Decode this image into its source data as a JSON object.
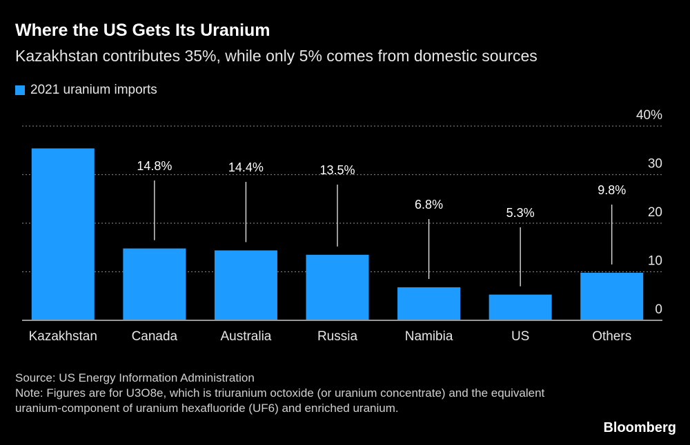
{
  "title": "Where the US Gets Its Uranium",
  "subtitle": "Kazakhstan contributes 35%, while only 5% comes from domestic sources",
  "source": "Source: US Energy Information Administration",
  "note": "Note: Figures are for U3O8e, which is triuranium octoxide (or uranium concentrate) and the equivalent uranium-component of uranium hexafluoride (UF6) and enriched uranium.",
  "brand": "Bloomberg",
  "colors": {
    "bar": "#1e9bff",
    "background": "#000000",
    "text": "#ffffff",
    "grid": "#888888"
  },
  "chart_data": {
    "type": "bar",
    "legend": "2021 uranium imports",
    "legend_placement": "top-left",
    "categories": [
      "Kazakhstan",
      "Canada",
      "Australia",
      "Russia",
      "Namibia",
      "US",
      "Others"
    ],
    "values": [
      35.4,
      14.8,
      14.4,
      13.5,
      6.8,
      5.3,
      9.8
    ],
    "data_labels": [
      "",
      "14.8%",
      "14.4%",
      "13.5%",
      "6.8%",
      "5.3%",
      "9.8%"
    ],
    "ylim": [
      0,
      40
    ],
    "yticks": [
      0,
      10,
      20,
      30,
      40
    ],
    "ytick_labels": [
      "0",
      "10",
      "20",
      "30",
      "40%"
    ],
    "yaxis_position": "right",
    "grid": true
  }
}
